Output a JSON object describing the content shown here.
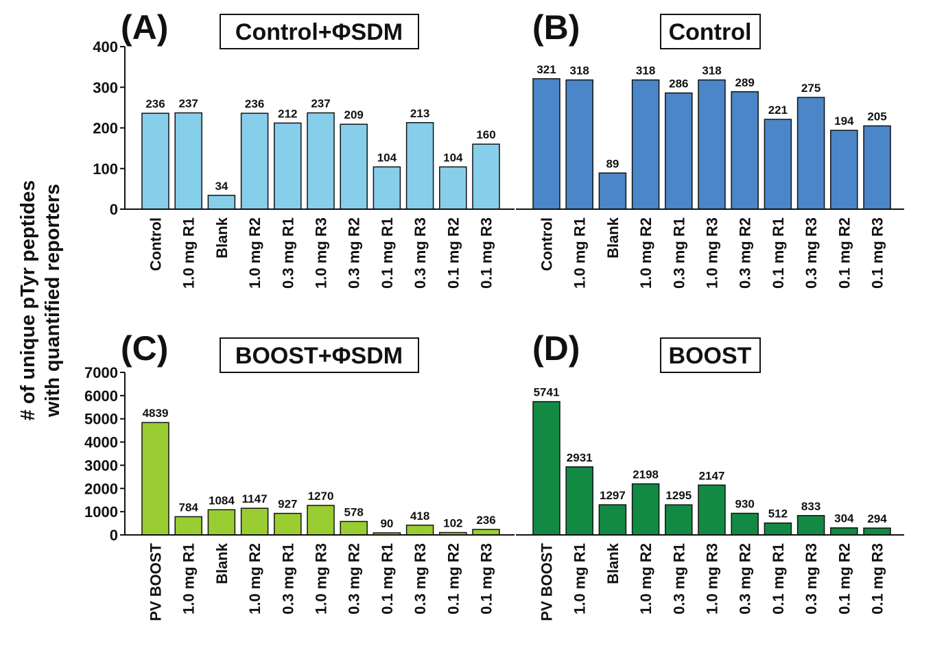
{
  "ylabel_lines": [
    "# of unique pTyr peptides",
    "with quantified reporters"
  ],
  "chart_data": [
    {
      "type": "bar",
      "panel": "(A)",
      "title": "Control+ΦSDM",
      "categories": [
        "Control",
        "1.0 mg R1",
        "Blank",
        "1.0 mg R2",
        "0.3 mg R1",
        "1.0 mg R3",
        "0.3 mg R2",
        "0.1 mg R1",
        "0.3 mg R3",
        "0.1 mg R2",
        "0.1 mg R3"
      ],
      "values": [
        236,
        237,
        34,
        236,
        212,
        237,
        209,
        104,
        213,
        104,
        160
      ],
      "ylim": [
        0,
        400
      ],
      "yticks": [
        0,
        100,
        200,
        300,
        400
      ],
      "show_y_axis": true,
      "color": "#87CEEB",
      "grid": false
    },
    {
      "type": "bar",
      "panel": "(B)",
      "title": "Control",
      "categories": [
        "Control",
        "1.0 mg R1",
        "Blank",
        "1.0 mg R2",
        "0.3 mg R1",
        "1.0 mg R3",
        "0.3 mg R2",
        "0.1 mg R1",
        "0.3 mg R3",
        "0.1 mg R2",
        "0.1 mg R3"
      ],
      "values": [
        321,
        318,
        89,
        318,
        286,
        318,
        289,
        221,
        275,
        194,
        205
      ],
      "ylim": [
        0,
        400
      ],
      "yticks": [
        0,
        100,
        200,
        300,
        400
      ],
      "show_y_axis": false,
      "color": "#4A86C8",
      "grid": false
    },
    {
      "type": "bar",
      "panel": "(C)",
      "title": "BOOST+ΦSDM",
      "categories": [
        "PV BOOST",
        "1.0 mg R1",
        "Blank",
        "1.0 mg R2",
        "0.3 mg R1",
        "1.0 mg R3",
        "0.3 mg R2",
        "0.1 mg R1",
        "0.3 mg R3",
        "0.1 mg R2",
        "0.1 mg R3"
      ],
      "values": [
        4839,
        784,
        1084,
        1147,
        927,
        1270,
        578,
        90,
        418,
        102,
        236
      ],
      "ylim": [
        0,
        7000
      ],
      "yticks": [
        0,
        1000,
        2000,
        3000,
        4000,
        5000,
        6000,
        7000
      ],
      "show_y_axis": true,
      "color": "#9ACD32",
      "grid": false
    },
    {
      "type": "bar",
      "panel": "(D)",
      "title": "BOOST",
      "categories": [
        "PV BOOST",
        "1.0 mg R1",
        "Blank",
        "1.0 mg R2",
        "0.3 mg R1",
        "1.0 mg R3",
        "0.3 mg R2",
        "0.1 mg R1",
        "0.3 mg R3",
        "0.1 mg R2",
        "0.1 mg R3"
      ],
      "values": [
        5741,
        2931,
        1297,
        2198,
        1295,
        2147,
        930,
        512,
        833,
        304,
        294
      ],
      "ylim": [
        0,
        7000
      ],
      "yticks": [
        0,
        1000,
        2000,
        3000,
        4000,
        5000,
        6000,
        7000
      ],
      "show_y_axis": false,
      "color": "#138A44",
      "grid": false
    }
  ]
}
